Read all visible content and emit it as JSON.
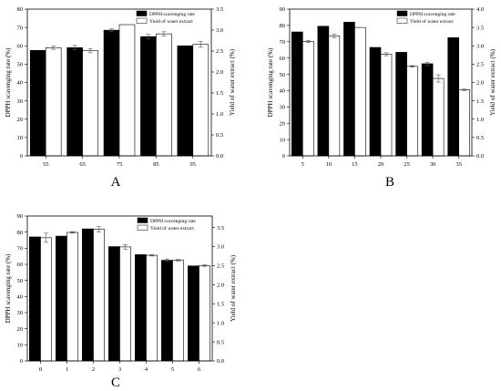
{
  "chart_data": [
    {
      "type": "bar",
      "panel_label": "A",
      "categories": [
        "55",
        "65",
        "75",
        "85",
        "95"
      ],
      "series": [
        {
          "name": "DPPH scavenging rate",
          "axis": "left",
          "color": "#000000",
          "values": [
            57.5,
            59,
            68.5,
            65,
            60
          ],
          "errors": [
            0,
            1.2,
            0.8,
            1.2,
            0
          ]
        },
        {
          "name": "Yield of water extract",
          "axis": "right",
          "color": "#ffffff",
          "values": [
            2.58,
            2.51,
            3.13,
            2.91,
            2.66
          ],
          "errors": [
            0.04,
            0.05,
            0,
            0.05,
            0.07
          ]
        }
      ],
      "ylabel": "DPPH scavenging rate (%)",
      "y2label": "Yield of water extract (%)",
      "ylim": [
        0,
        80
      ],
      "y2lim": [
        0,
        3.5
      ],
      "yticks": [
        0,
        10,
        20,
        30,
        40,
        50,
        60,
        70,
        80
      ],
      "y2ticks": [
        0.0,
        0.5,
        1.0,
        1.5,
        2.0,
        2.5,
        3.0,
        3.5
      ],
      "legend_position": "top-right"
    },
    {
      "type": "bar",
      "panel_label": "B",
      "categories": [
        "5",
        "10",
        "15",
        "20",
        "25",
        "30",
        "35"
      ],
      "series": [
        {
          "name": "DPPH scavenging rate",
          "axis": "left",
          "color": "#000000",
          "values": [
            76,
            79.5,
            82,
            66.5,
            63.5,
            56.5,
            72.5
          ],
          "errors": [
            0,
            0,
            0,
            0,
            0,
            0.8,
            0
          ]
        },
        {
          "name": "Yield of water extract",
          "axis": "right",
          "color": "#ffffff",
          "values": [
            3.12,
            3.27,
            3.5,
            2.77,
            2.44,
            2.11,
            1.8
          ],
          "errors": [
            0.03,
            0.05,
            0,
            0.04,
            0.02,
            0.1,
            0.02
          ]
        }
      ],
      "ylabel": "DPPH scavenging rate (%)",
      "y2label": "Yield of water extract (%)",
      "ylim": [
        0,
        90
      ],
      "y2lim": [
        0,
        4.0
      ],
      "yticks": [
        0,
        10,
        20,
        30,
        40,
        50,
        60,
        70,
        80,
        90
      ],
      "y2ticks": [
        0.0,
        0.5,
        1.0,
        1.5,
        2.0,
        2.5,
        3.0,
        3.5,
        4.0
      ],
      "legend_position": "top-right"
    },
    {
      "type": "bar",
      "panel_label": "C",
      "categories": [
        "0",
        "1",
        "2",
        "3",
        "4",
        "5",
        "6"
      ],
      "series": [
        {
          "name": "DPPH scavenging rate",
          "axis": "left",
          "color": "#000000",
          "values": [
            77,
            77.5,
            82,
            71,
            66,
            62.5,
            59
          ],
          "errors": [
            0,
            0,
            0,
            0,
            0,
            0.8,
            0
          ]
        },
        {
          "name": "Yield of water extract",
          "axis": "right",
          "color": "#ffffff",
          "values": [
            3.23,
            3.37,
            3.45,
            2.99,
            2.77,
            2.64,
            2.5
          ],
          "errors": [
            0.12,
            0.02,
            0.07,
            0.06,
            0.02,
            0.02,
            0.02
          ]
        }
      ],
      "ylabel": "DPPH scavenging rate (%)",
      "y2label": "Yield of water extract (%)",
      "ylim": [
        0,
        90
      ],
      "y2lim": [
        0,
        3.8
      ],
      "yticks": [
        0,
        10,
        20,
        30,
        40,
        50,
        60,
        70,
        80,
        90
      ],
      "y2ticks": [
        0.0,
        0.5,
        1.0,
        1.5,
        2.0,
        2.5,
        3.0,
        3.5
      ],
      "legend_position": "top-right"
    }
  ]
}
